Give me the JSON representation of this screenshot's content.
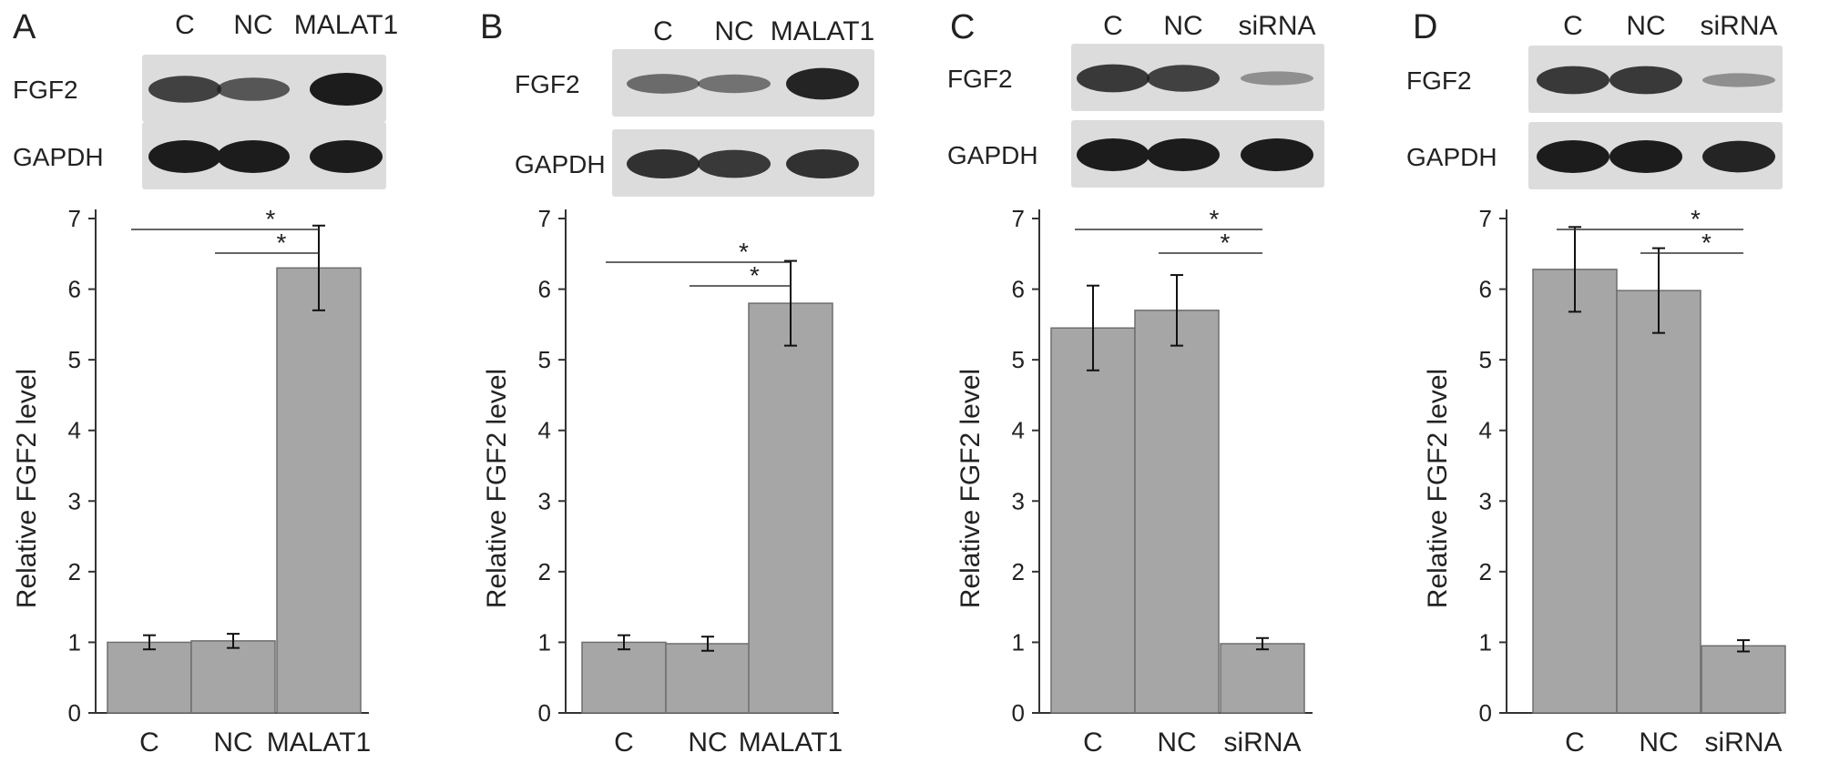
{
  "colors": {
    "bar_fill": "#a6a6a6",
    "bar_stroke": "#6e6e6e",
    "axis": "#333333",
    "blot_bg": "#dcdcdc",
    "band": "#1c1c1c"
  },
  "chart_data": [
    {
      "type": "bar",
      "panel": "A",
      "title": "",
      "categories": [
        "C",
        "NC",
        "MALAT1"
      ],
      "values": [
        1.0,
        1.02,
        6.3
      ],
      "errors": [
        0.1,
        0.1,
        0.6
      ],
      "xlabel": "",
      "ylabel": "Relative FGF2 level",
      "ylim": [
        0,
        7
      ],
      "yticks": [
        "0",
        "1",
        "2",
        "3",
        "4",
        "5",
        "6",
        "7"
      ],
      "grid": false,
      "significance": [
        {
          "from": 0,
          "to": 2,
          "label": "*"
        },
        {
          "from": 1,
          "to": 2,
          "label": "*"
        }
      ],
      "blot": {
        "lanes": [
          "C",
          "NC",
          "MALAT1"
        ],
        "rows": [
          {
            "label": "FGF2",
            "intensity": [
              0.75,
              0.6,
              1.0
            ]
          },
          {
            "label": "GAPDH",
            "intensity": [
              1.0,
              1.0,
              1.0
            ]
          }
        ]
      }
    },
    {
      "type": "bar",
      "panel": "B",
      "title": "",
      "categories": [
        "C",
        "NC",
        "MALAT1"
      ],
      "values": [
        1.0,
        0.98,
        5.8
      ],
      "errors": [
        0.1,
        0.1,
        0.6
      ],
      "xlabel": "",
      "ylabel": "Relative FGF2 level",
      "ylim": [
        0,
        7
      ],
      "yticks": [
        "0",
        "1",
        "2",
        "3",
        "4",
        "5",
        "6",
        "7"
      ],
      "grid": false,
      "significance": [
        {
          "from": 0,
          "to": 2,
          "label": "*"
        },
        {
          "from": 1,
          "to": 2,
          "label": "*"
        }
      ],
      "blot": {
        "lanes": [
          "C",
          "NC",
          "MALAT1"
        ],
        "rows": [
          {
            "label": "FGF2",
            "intensity": [
              0.45,
              0.4,
              0.95
            ]
          },
          {
            "label": "GAPDH",
            "intensity": [
              0.85,
              0.8,
              0.85
            ]
          }
        ]
      }
    },
    {
      "type": "bar",
      "panel": "C",
      "title": "",
      "categories": [
        "C",
        "NC",
        "siRNA"
      ],
      "values": [
        5.45,
        5.7,
        0.98
      ],
      "errors": [
        0.6,
        0.5,
        0.08
      ],
      "xlabel": "",
      "ylabel": "Relative FGF2 level",
      "ylim": [
        0,
        7
      ],
      "yticks": [
        "0",
        "1",
        "2",
        "3",
        "4",
        "5",
        "6",
        "7"
      ],
      "grid": false,
      "significance": [
        {
          "from": 0,
          "to": 2,
          "label": "*"
        },
        {
          "from": 1,
          "to": 2,
          "label": "*"
        }
      ],
      "blot": {
        "lanes": [
          "C",
          "NC",
          "siRNA"
        ],
        "rows": [
          {
            "label": "FGF2",
            "intensity": [
              0.8,
              0.75,
              0.2
            ]
          },
          {
            "label": "GAPDH",
            "intensity": [
              1.0,
              1.0,
              1.0
            ]
          }
        ]
      }
    },
    {
      "type": "bar",
      "panel": "D",
      "title": "",
      "categories": [
        "C",
        "NC",
        "siRNA"
      ],
      "values": [
        6.28,
        5.98,
        0.95
      ],
      "errors": [
        0.6,
        0.6,
        0.08
      ],
      "xlabel": "",
      "ylabel": "Relative FGF2 level",
      "ylim": [
        0,
        7
      ],
      "yticks": [
        "0",
        "1",
        "2",
        "3",
        "4",
        "5",
        "6",
        "7"
      ],
      "grid": false,
      "significance": [
        {
          "from": 0,
          "to": 2,
          "label": "*"
        },
        {
          "from": 1,
          "to": 2,
          "label": "*"
        }
      ],
      "blot": {
        "lanes": [
          "C",
          "NC",
          "siRNA"
        ],
        "rows": [
          {
            "label": "FGF2",
            "intensity": [
              0.8,
              0.8,
              0.2
            ]
          },
          {
            "label": "GAPDH",
            "intensity": [
              1.0,
              1.0,
              0.95
            ]
          }
        ]
      }
    }
  ]
}
